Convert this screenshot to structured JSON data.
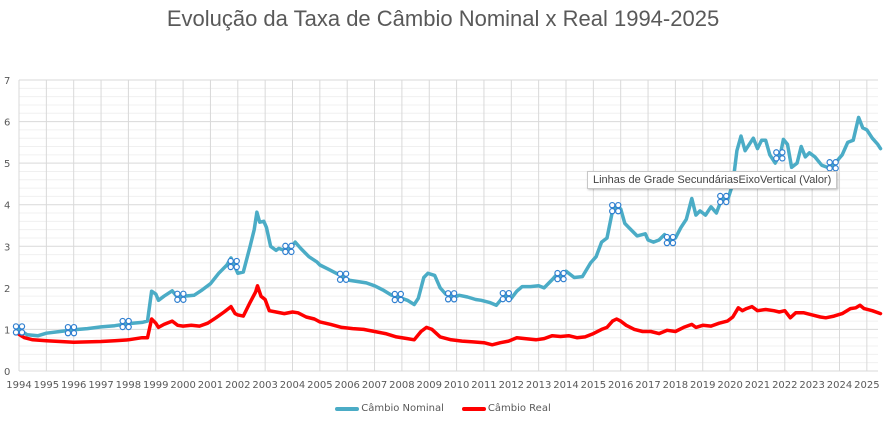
{
  "chart_data": {
    "type": "line",
    "title": "Evolução da Taxa de Câmbio Nominal x Real 1994-2025",
    "xlabel": "",
    "ylabel": "",
    "xlim": [
      1994,
      2025.5
    ],
    "ylim": [
      0,
      7
    ],
    "y_major_ticks": [
      0,
      1,
      2,
      3,
      4,
      5,
      6,
      7
    ],
    "y_minor_step": 0.2,
    "x_tick_labels": [
      "1994",
      "1995",
      "1996",
      "1997",
      "1998",
      "1999",
      "2000",
      "2001",
      "2002",
      "2003",
      "2004",
      "2005",
      "2006",
      "2007",
      "2008",
      "2009",
      "2010",
      "2011",
      "2012",
      "2013",
      "2014",
      "2015",
      "2016",
      "2017",
      "2018",
      "2019",
      "2020",
      "2021",
      "2022",
      "2023",
      "2024",
      "2025"
    ],
    "grid": true,
    "legend": "bottom",
    "series": [
      {
        "name": "Câmbio Nominal",
        "color": "#4BACC6",
        "points": [
          [
            1994.0,
            1.0
          ],
          [
            1994.3,
            0.87
          ],
          [
            1994.7,
            0.85
          ],
          [
            1995.0,
            0.91
          ],
          [
            1995.5,
            0.95
          ],
          [
            1996.0,
            0.99
          ],
          [
            1996.5,
            1.02
          ],
          [
            1997.0,
            1.06
          ],
          [
            1997.5,
            1.09
          ],
          [
            1998.0,
            1.14
          ],
          [
            1998.5,
            1.17
          ],
          [
            1998.7,
            1.2
          ],
          [
            1998.85,
            1.92
          ],
          [
            1999.0,
            1.85
          ],
          [
            1999.1,
            1.7
          ],
          [
            1999.3,
            1.8
          ],
          [
            1999.6,
            1.93
          ],
          [
            1999.8,
            1.77
          ],
          [
            2000.0,
            1.8
          ],
          [
            2000.4,
            1.82
          ],
          [
            2000.7,
            1.95
          ],
          [
            2001.0,
            2.1
          ],
          [
            2001.3,
            2.35
          ],
          [
            2001.6,
            2.55
          ],
          [
            2001.75,
            2.72
          ],
          [
            2001.9,
            2.5
          ],
          [
            2002.0,
            2.35
          ],
          [
            2002.2,
            2.38
          ],
          [
            2002.45,
            3.0
          ],
          [
            2002.6,
            3.4
          ],
          [
            2002.7,
            3.82
          ],
          [
            2002.8,
            3.58
          ],
          [
            2002.95,
            3.6
          ],
          [
            2003.05,
            3.45
          ],
          [
            2003.2,
            3.0
          ],
          [
            2003.4,
            2.9
          ],
          [
            2003.5,
            2.95
          ],
          [
            2003.7,
            2.9
          ],
          [
            2003.9,
            2.95
          ],
          [
            2004.1,
            3.1
          ],
          [
            2004.3,
            2.95
          ],
          [
            2004.6,
            2.75
          ],
          [
            2004.9,
            2.62
          ],
          [
            2005.0,
            2.55
          ],
          [
            2005.3,
            2.45
          ],
          [
            2005.6,
            2.35
          ],
          [
            2005.9,
            2.25
          ],
          [
            2006.1,
            2.18
          ],
          [
            2006.4,
            2.15
          ],
          [
            2006.7,
            2.12
          ],
          [
            2007.0,
            2.05
          ],
          [
            2007.3,
            1.95
          ],
          [
            2007.6,
            1.83
          ],
          [
            2007.9,
            1.77
          ],
          [
            2008.2,
            1.7
          ],
          [
            2008.45,
            1.6
          ],
          [
            2008.6,
            1.75
          ],
          [
            2008.8,
            2.25
          ],
          [
            2008.95,
            2.35
          ],
          [
            2009.2,
            2.3
          ],
          [
            2009.4,
            2.0
          ],
          [
            2009.6,
            1.85
          ],
          [
            2009.9,
            1.77
          ],
          [
            2010.1,
            1.82
          ],
          [
            2010.4,
            1.78
          ],
          [
            2010.7,
            1.72
          ],
          [
            2010.9,
            1.7
          ],
          [
            2011.2,
            1.65
          ],
          [
            2011.45,
            1.58
          ],
          [
            2011.6,
            1.7
          ],
          [
            2011.8,
            1.8
          ],
          [
            2012.0,
            1.75
          ],
          [
            2012.2,
            1.92
          ],
          [
            2012.4,
            2.03
          ],
          [
            2012.7,
            2.03
          ],
          [
            2013.0,
            2.05
          ],
          [
            2013.2,
            2.0
          ],
          [
            2013.5,
            2.2
          ],
          [
            2013.7,
            2.35
          ],
          [
            2013.85,
            2.25
          ],
          [
            2014.0,
            2.4
          ],
          [
            2014.3,
            2.25
          ],
          [
            2014.6,
            2.27
          ],
          [
            2014.9,
            2.6
          ],
          [
            2015.1,
            2.75
          ],
          [
            2015.3,
            3.1
          ],
          [
            2015.5,
            3.2
          ],
          [
            2015.7,
            3.85
          ],
          [
            2015.85,
            3.95
          ],
          [
            2016.0,
            3.9
          ],
          [
            2016.15,
            3.55
          ],
          [
            2016.3,
            3.45
          ],
          [
            2016.6,
            3.25
          ],
          [
            2016.9,
            3.3
          ],
          [
            2017.0,
            3.15
          ],
          [
            2017.2,
            3.1
          ],
          [
            2017.4,
            3.15
          ],
          [
            2017.6,
            3.28
          ],
          [
            2017.8,
            3.15
          ],
          [
            2018.0,
            3.2
          ],
          [
            2018.2,
            3.45
          ],
          [
            2018.4,
            3.65
          ],
          [
            2018.6,
            4.15
          ],
          [
            2018.75,
            3.75
          ],
          [
            2018.9,
            3.85
          ],
          [
            2019.1,
            3.75
          ],
          [
            2019.3,
            3.95
          ],
          [
            2019.5,
            3.8
          ],
          [
            2019.7,
            4.15
          ],
          [
            2019.9,
            4.1
          ],
          [
            2020.1,
            4.5
          ],
          [
            2020.25,
            5.3
          ],
          [
            2020.4,
            5.65
          ],
          [
            2020.55,
            5.3
          ],
          [
            2020.7,
            5.45
          ],
          [
            2020.85,
            5.6
          ],
          [
            2021.0,
            5.35
          ],
          [
            2021.15,
            5.55
          ],
          [
            2021.3,
            5.55
          ],
          [
            2021.45,
            5.2
          ],
          [
            2021.65,
            5.0
          ],
          [
            2021.85,
            5.25
          ],
          [
            2021.95,
            5.57
          ],
          [
            2022.1,
            5.45
          ],
          [
            2022.25,
            4.9
          ],
          [
            2022.45,
            5.0
          ],
          [
            2022.6,
            5.4
          ],
          [
            2022.75,
            5.15
          ],
          [
            2022.9,
            5.25
          ],
          [
            2023.1,
            5.15
          ],
          [
            2023.35,
            4.95
          ],
          [
            2023.55,
            4.9
          ],
          [
            2023.75,
            4.95
          ],
          [
            2023.9,
            5.05
          ],
          [
            2024.1,
            5.2
          ],
          [
            2024.3,
            5.5
          ],
          [
            2024.5,
            5.55
          ],
          [
            2024.7,
            6.1
          ],
          [
            2024.85,
            5.85
          ],
          [
            2025.0,
            5.8
          ],
          [
            2025.2,
            5.6
          ],
          [
            2025.4,
            5.45
          ],
          [
            2025.5,
            5.35
          ]
        ]
      },
      {
        "name": "Câmbio Real",
        "color": "#FF0000",
        "points": [
          [
            1994.0,
            0.88
          ],
          [
            1994.2,
            0.8
          ],
          [
            1994.5,
            0.75
          ],
          [
            1995.0,
            0.73
          ],
          [
            1995.5,
            0.71
          ],
          [
            1996.0,
            0.69
          ],
          [
            1996.5,
            0.7
          ],
          [
            1997.0,
            0.71
          ],
          [
            1997.5,
            0.73
          ],
          [
            1998.0,
            0.75
          ],
          [
            1998.5,
            0.8
          ],
          [
            1998.7,
            0.8
          ],
          [
            1998.85,
            1.25
          ],
          [
            1999.0,
            1.15
          ],
          [
            1999.1,
            1.05
          ],
          [
            1999.3,
            1.12
          ],
          [
            1999.6,
            1.2
          ],
          [
            1999.8,
            1.1
          ],
          [
            2000.0,
            1.08
          ],
          [
            2000.3,
            1.1
          ],
          [
            2000.6,
            1.08
          ],
          [
            2000.9,
            1.15
          ],
          [
            2001.2,
            1.28
          ],
          [
            2001.5,
            1.42
          ],
          [
            2001.75,
            1.55
          ],
          [
            2001.9,
            1.38
          ],
          [
            2002.0,
            1.35
          ],
          [
            2002.2,
            1.32
          ],
          [
            2002.45,
            1.65
          ],
          [
            2002.65,
            1.9
          ],
          [
            2002.72,
            2.05
          ],
          [
            2002.85,
            1.8
          ],
          [
            2003.0,
            1.72
          ],
          [
            2003.15,
            1.45
          ],
          [
            2003.4,
            1.42
          ],
          [
            2003.7,
            1.38
          ],
          [
            2004.0,
            1.42
          ],
          [
            2004.2,
            1.4
          ],
          [
            2004.5,
            1.3
          ],
          [
            2004.8,
            1.25
          ],
          [
            2005.0,
            1.18
          ],
          [
            2005.4,
            1.12
          ],
          [
            2005.8,
            1.05
          ],
          [
            2006.2,
            1.02
          ],
          [
            2006.6,
            1.0
          ],
          [
            2007.0,
            0.95
          ],
          [
            2007.4,
            0.9
          ],
          [
            2007.8,
            0.82
          ],
          [
            2008.2,
            0.78
          ],
          [
            2008.45,
            0.75
          ],
          [
            2008.7,
            0.95
          ],
          [
            2008.9,
            1.05
          ],
          [
            2009.1,
            1.0
          ],
          [
            2009.4,
            0.82
          ],
          [
            2009.8,
            0.75
          ],
          [
            2010.2,
            0.72
          ],
          [
            2010.6,
            0.7
          ],
          [
            2011.0,
            0.68
          ],
          [
            2011.3,
            0.63
          ],
          [
            2011.6,
            0.68
          ],
          [
            2011.9,
            0.72
          ],
          [
            2012.2,
            0.8
          ],
          [
            2012.5,
            0.78
          ],
          [
            2012.9,
            0.75
          ],
          [
            2013.2,
            0.78
          ],
          [
            2013.5,
            0.85
          ],
          [
            2013.8,
            0.83
          ],
          [
            2014.1,
            0.85
          ],
          [
            2014.4,
            0.8
          ],
          [
            2014.7,
            0.82
          ],
          [
            2015.0,
            0.9
          ],
          [
            2015.3,
            1.0
          ],
          [
            2015.5,
            1.05
          ],
          [
            2015.7,
            1.2
          ],
          [
            2015.85,
            1.25
          ],
          [
            2016.0,
            1.2
          ],
          [
            2016.2,
            1.1
          ],
          [
            2016.5,
            1.0
          ],
          [
            2016.8,
            0.95
          ],
          [
            2017.1,
            0.95
          ],
          [
            2017.4,
            0.9
          ],
          [
            2017.7,
            0.98
          ],
          [
            2018.0,
            0.95
          ],
          [
            2018.3,
            1.05
          ],
          [
            2018.6,
            1.12
          ],
          [
            2018.75,
            1.05
          ],
          [
            2019.0,
            1.1
          ],
          [
            2019.3,
            1.08
          ],
          [
            2019.6,
            1.15
          ],
          [
            2019.9,
            1.2
          ],
          [
            2020.1,
            1.3
          ],
          [
            2020.3,
            1.52
          ],
          [
            2020.45,
            1.45
          ],
          [
            2020.6,
            1.5
          ],
          [
            2020.8,
            1.55
          ],
          [
            2021.0,
            1.45
          ],
          [
            2021.3,
            1.48
          ],
          [
            2021.6,
            1.45
          ],
          [
            2021.8,
            1.42
          ],
          [
            2022.0,
            1.45
          ],
          [
            2022.2,
            1.28
          ],
          [
            2022.4,
            1.4
          ],
          [
            2022.7,
            1.4
          ],
          [
            2023.0,
            1.35
          ],
          [
            2023.3,
            1.3
          ],
          [
            2023.5,
            1.28
          ],
          [
            2023.8,
            1.32
          ],
          [
            2024.1,
            1.38
          ],
          [
            2024.4,
            1.5
          ],
          [
            2024.6,
            1.52
          ],
          [
            2024.75,
            1.58
          ],
          [
            2024.9,
            1.5
          ],
          [
            2025.2,
            1.45
          ],
          [
            2025.5,
            1.38
          ]
        ]
      }
    ]
  },
  "tooltip": {
    "text": "Linhas de Grade SecundáriasEixoVertical (Valor)"
  },
  "selection_handles": {
    "nominal_years": [
      1994.0,
      1995.9,
      1997.9,
      1999.9,
      2001.85,
      2003.85,
      2005.85,
      2007.85,
      2009.8,
      2011.8,
      2013.8,
      2015.8,
      2017.8,
      2019.75,
      2021.8,
      2023.75
    ]
  }
}
